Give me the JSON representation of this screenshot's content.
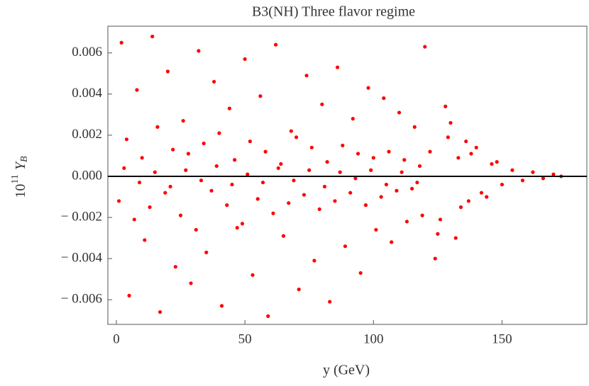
{
  "chart_data": {
    "type": "scatter",
    "title": "B3(NH) Three flavor regime",
    "xlabel": "y (GeV)",
    "ylabel": [
      "10",
      "11",
      "Y",
      "B"
    ],
    "xlim": [
      -3.3,
      183
    ],
    "ylim": [
      -0.0072,
      0.0073
    ],
    "xticks": [
      0,
      50,
      100,
      150
    ],
    "yticks": [
      {
        "value": -0.006,
        "label": "− 0.006"
      },
      {
        "value": -0.004,
        "label": "− 0.004"
      },
      {
        "value": -0.002,
        "label": "− 0.002"
      },
      {
        "value": 0,
        "label": "0.000"
      },
      {
        "value": 0.002,
        "label": "0.002"
      },
      {
        "value": 0.004,
        "label": "0.004"
      },
      {
        "value": 0.006,
        "label": "0.006"
      }
    ],
    "zero_line": true,
    "series": [
      {
        "color": "#ff0000",
        "x": [
          2,
          5,
          8,
          11,
          14,
          17,
          20,
          23,
          26,
          29,
          32,
          35,
          38,
          41,
          44,
          47,
          50,
          53,
          56,
          59,
          62,
          65,
          68,
          71,
          74,
          77,
          80,
          83,
          86,
          89,
          92,
          95,
          98,
          101,
          104,
          107,
          110,
          113,
          116,
          119,
          1,
          4,
          7,
          10,
          13,
          16,
          19,
          22,
          25,
          28,
          31,
          34,
          37,
          40,
          43,
          46,
          49,
          52,
          55,
          58,
          61,
          64,
          67,
          70,
          73,
          76,
          79,
          82,
          85,
          88,
          91,
          94,
          97,
          100,
          103,
          106,
          109,
          112,
          115,
          118,
          3,
          9,
          15,
          21,
          27,
          33,
          39,
          45,
          51,
          57,
          63,
          69,
          75,
          81,
          87,
          93,
          99,
          105,
          111,
          117,
          122,
          126,
          130,
          134,
          138,
          142,
          146,
          150,
          154,
          158,
          162,
          166,
          170,
          173,
          120,
          124,
          128,
          132,
          136,
          140,
          144,
          148,
          125,
          129,
          133,
          137
        ],
        "values": [
          0.0065,
          -0.0058,
          0.0042,
          -0.0031,
          0.0068,
          -0.0066,
          0.0051,
          -0.0044,
          0.0027,
          -0.0052,
          0.0061,
          -0.0037,
          0.0046,
          -0.0063,
          0.0033,
          -0.0025,
          0.0057,
          -0.0048,
          0.0039,
          -0.0068,
          0.0064,
          -0.0029,
          0.0022,
          -0.0055,
          0.0049,
          -0.0041,
          0.0035,
          -0.0061,
          0.0053,
          -0.0034,
          0.0028,
          -0.0047,
          0.0043,
          -0.0026,
          0.0038,
          -0.0032,
          0.0031,
          -0.0022,
          0.0024,
          -0.0019,
          -0.0012,
          0.0018,
          -0.0021,
          0.0009,
          -0.0015,
          0.0024,
          -0.0008,
          0.0013,
          -0.0019,
          0.0011,
          -0.0026,
          0.0016,
          -0.0007,
          0.0021,
          -0.0014,
          0.0008,
          -0.0023,
          0.0017,
          -0.0011,
          0.0012,
          -0.0018,
          0.0006,
          -0.0013,
          0.0019,
          -0.0009,
          0.0014,
          -0.0016,
          0.0007,
          -0.0012,
          0.0015,
          -0.0008,
          0.0011,
          -0.0014,
          0.0009,
          -0.001,
          0.0012,
          -0.0007,
          0.0008,
          -0.0006,
          0.0005,
          0.0004,
          -0.0003,
          0.0002,
          -0.0005,
          0.0003,
          -0.0002,
          0.0005,
          -0.0004,
          0.0001,
          -0.0003,
          0.0004,
          -0.0002,
          0.0003,
          -0.0005,
          0.0002,
          -0.0001,
          0.0003,
          -0.0004,
          0.0002,
          -0.0003,
          0.0012,
          -0.0021,
          0.0026,
          -0.0015,
          0.0011,
          -0.0008,
          0.0006,
          -0.0004,
          0.0003,
          -0.0002,
          0.0002,
          -0.0001,
          0.0001,
          0,
          0.0063,
          -0.004,
          0.0034,
          -0.003,
          0.0017,
          0.0014,
          -0.001,
          0.0007,
          -0.0028,
          0.0019,
          0.0009,
          -0.0012
        ]
      }
    ]
  }
}
